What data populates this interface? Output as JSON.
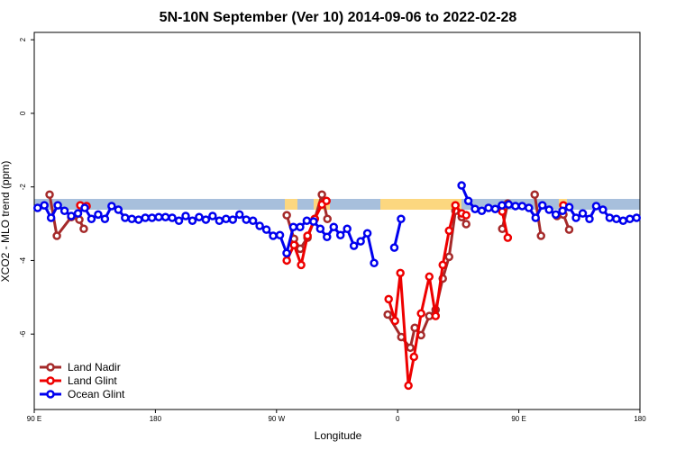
{
  "chart_data": {
    "type": "line",
    "title": "5N-10N September (Ver 10)   2014-09-06 to 2022-02-28",
    "x_label": "Longitude",
    "y_label": "XCO2 - MLO trend (ppm)",
    "xlim": [
      90,
      540
    ],
    "ylim": [
      -8.05,
      2.2
    ],
    "xticks": [
      {
        "value": 90,
        "label": "90 E"
      },
      180,
      {
        "value": 270,
        "label": "90 W"
      },
      {
        "value": 360,
        "label": "0"
      },
      {
        "value": 450,
        "label": "90 E"
      },
      180
    ],
    "yticks": [
      2,
      0,
      -2,
      -4,
      -6
    ],
    "legend": "bottom-left",
    "series": [
      {
        "name": "Land Nadir",
        "color": "#a52a2a",
        "x": [
          101.4,
          106.8,
          117.5,
          123.5,
          126.8,
          200,
          277.6,
          283,
          287.6,
          293,
          298.4,
          303.7,
          307.8,
          330,
          352.6,
          362.7,
          369.4,
          372.7,
          377.4,
          383.5,
          388.2,
          393.5,
          398.2,
          402.9,
          407.6,
          410.9,
          425,
          437.7,
          441.8,
          450,
          461.8,
          466.5,
          472,
          478.4,
          483.1,
          487.4
        ],
        "values": [
          -2.21,
          -3.33,
          -2.82,
          -2.89,
          -3.14,
          null,
          -2.77,
          -3.41,
          -3.68,
          -3.38,
          -2.87,
          -2.21,
          -2.87,
          null,
          -5.47,
          -6.08,
          -6.37,
          -5.83,
          -6.03,
          -5.51,
          -5.34,
          -4.49,
          -3.9,
          -2.65,
          -2.82,
          -3.01,
          null,
          -3.14,
          -2.45,
          null,
          -2.21,
          -3.33,
          null,
          -2.79,
          -2.75,
          -3.16
        ]
      },
      {
        "name": "Land Glint",
        "color": "#ee0000",
        "x": [
          124.2,
          128.9,
          200,
          277.6,
          283,
          288.3,
          293,
          298.4,
          303.7,
          307.1,
          330,
          353.3,
          358,
          362,
          368,
          372.1,
          377.4,
          383.5,
          388.2,
          393.5,
          398.2,
          402.9,
          407.6,
          410.9,
          425,
          437.7,
          441.8,
          460,
          483.1
        ],
        "values": [
          -2.5,
          -2.52,
          null,
          -4.0,
          -3.58,
          -4.12,
          -3.33,
          -2.87,
          -2.48,
          -2.38,
          null,
          -5.05,
          -5.64,
          -4.34,
          -7.4,
          -6.62,
          -5.44,
          -4.44,
          -5.51,
          -4.12,
          -3.19,
          -2.5,
          -2.72,
          -2.77,
          null,
          -2.67,
          -3.38,
          null,
          -2.5
        ]
      },
      {
        "name": "Ocean Glint",
        "color": "#0000ee",
        "x": [
          92.5,
          97.5,
          102.5,
          107.5,
          112.5,
          117.5,
          122.5,
          127.5,
          132.5,
          137.5,
          142.5,
          147.5,
          152.5,
          157.5,
          162.5,
          167.5,
          172.5,
          177.5,
          182.5,
          187.5,
          192.5,
          197.5,
          202.5,
          207.5,
          212.5,
          217.5,
          222.5,
          227.5,
          232.5,
          237.5,
          242.5,
          247.5,
          252.5,
          257.5,
          262.5,
          267.5,
          272.5,
          277.5,
          282.5,
          287.5,
          292.5,
          297.5,
          302.5,
          307.5,
          312.5,
          317.5,
          322.5,
          327.5,
          332.5,
          337.5,
          342.5,
          350,
          357.5,
          362.5,
          385,
          407.5,
          412.5,
          417.5,
          422.5,
          427.5,
          432.5,
          437.5,
          442.5,
          447.5,
          452.5,
          457.5,
          462.5,
          467.5,
          472.5,
          477.5,
          482.5,
          487.5,
          492.5,
          497.5,
          502.5,
          507.5,
          512.5,
          517.5,
          522.5,
          527.5,
          532.5,
          537.5
        ],
        "values": [
          -2.57,
          -2.5,
          -2.84,
          -2.5,
          -2.65,
          -2.79,
          -2.72,
          -2.57,
          -2.87,
          -2.75,
          -2.87,
          -2.52,
          -2.62,
          -2.84,
          -2.87,
          -2.89,
          -2.84,
          -2.84,
          -2.82,
          -2.82,
          -2.84,
          -2.92,
          -2.79,
          -2.92,
          -2.82,
          -2.89,
          -2.79,
          -2.92,
          -2.87,
          -2.89,
          -2.75,
          -2.89,
          -2.92,
          -3.06,
          -3.16,
          -3.33,
          -3.31,
          -3.8,
          -3.09,
          -3.09,
          -2.92,
          -2.94,
          -3.14,
          -3.36,
          -3.09,
          -3.31,
          -3.14,
          -3.6,
          -3.48,
          -3.26,
          -4.07,
          null,
          -3.65,
          -2.87,
          null,
          -1.96,
          -2.38,
          -2.6,
          -2.65,
          -2.57,
          -2.6,
          -2.5,
          -2.48,
          -2.52,
          -2.52,
          -2.57,
          -2.84,
          -2.5,
          -2.62,
          -2.75,
          -2.65,
          -2.55,
          -2.84,
          -2.72,
          -2.87,
          -2.52,
          -2.62,
          -2.84,
          -2.87,
          -2.92,
          -2.87,
          -2.84
        ]
      }
    ]
  }
}
